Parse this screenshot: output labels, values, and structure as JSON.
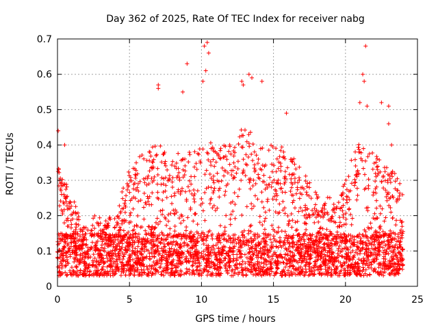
{
  "chart_data": {
    "type": "scatter",
    "title": "Day 362 of 2025, Rate Of TEC Index for receiver nabg",
    "xlabel": "GPS time / hours",
    "ylabel": "ROTI / TECUs",
    "xlim": [
      0,
      25
    ],
    "ylim": [
      0,
      0.7
    ],
    "xticks": [
      "0",
      "5",
      "10",
      "15",
      "20",
      "25"
    ],
    "yticks": [
      "0",
      "0.1",
      "0.2",
      "0.3",
      "0.4",
      "0.5",
      "0.6",
      "0.7"
    ],
    "xtick_values": [
      0,
      5,
      10,
      15,
      20,
      25
    ],
    "ytick_values": [
      0,
      0.1,
      0.2,
      0.3,
      0.4,
      0.5,
      0.6,
      0.7
    ],
    "grid": true,
    "marker": "+",
    "color": "#ff0000",
    "data_x_range": [
      0,
      24
    ],
    "activity_profile": {
      "x": [
        0,
        1,
        2,
        3,
        4,
        5,
        6,
        7,
        8,
        9,
        10,
        11,
        12,
        13,
        14,
        15,
        16,
        17,
        18,
        19,
        20,
        21,
        22,
        23,
        24
      ],
      "typical_upper": [
        0.33,
        0.22,
        0.16,
        0.18,
        0.17,
        0.32,
        0.35,
        0.38,
        0.34,
        0.36,
        0.4,
        0.38,
        0.4,
        0.42,
        0.4,
        0.38,
        0.36,
        0.3,
        0.24,
        0.22,
        0.28,
        0.4,
        0.36,
        0.32,
        0.25
      ]
    },
    "notable_points": [
      {
        "x": 0.05,
        "y": 0.44
      },
      {
        "x": 0.5,
        "y": 0.4
      },
      {
        "x": 7.0,
        "y": 0.57
      },
      {
        "x": 7.0,
        "y": 0.56
      },
      {
        "x": 8.7,
        "y": 0.55
      },
      {
        "x": 9.0,
        "y": 0.63
      },
      {
        "x": 10.2,
        "y": 0.68
      },
      {
        "x": 10.4,
        "y": 0.69
      },
      {
        "x": 10.5,
        "y": 0.66
      },
      {
        "x": 10.3,
        "y": 0.61
      },
      {
        "x": 10.1,
        "y": 0.58
      },
      {
        "x": 12.8,
        "y": 0.58
      },
      {
        "x": 12.9,
        "y": 0.57
      },
      {
        "x": 13.3,
        "y": 0.6
      },
      {
        "x": 13.5,
        "y": 0.59
      },
      {
        "x": 14.2,
        "y": 0.58
      },
      {
        "x": 15.9,
        "y": 0.49
      },
      {
        "x": 21.0,
        "y": 0.52
      },
      {
        "x": 21.2,
        "y": 0.6
      },
      {
        "x": 21.3,
        "y": 0.58
      },
      {
        "x": 21.4,
        "y": 0.68
      },
      {
        "x": 21.5,
        "y": 0.51
      },
      {
        "x": 22.5,
        "y": 0.52
      },
      {
        "x": 23.0,
        "y": 0.51
      },
      {
        "x": 23.0,
        "y": 0.46
      },
      {
        "x": 23.2,
        "y": 0.4
      }
    ]
  }
}
